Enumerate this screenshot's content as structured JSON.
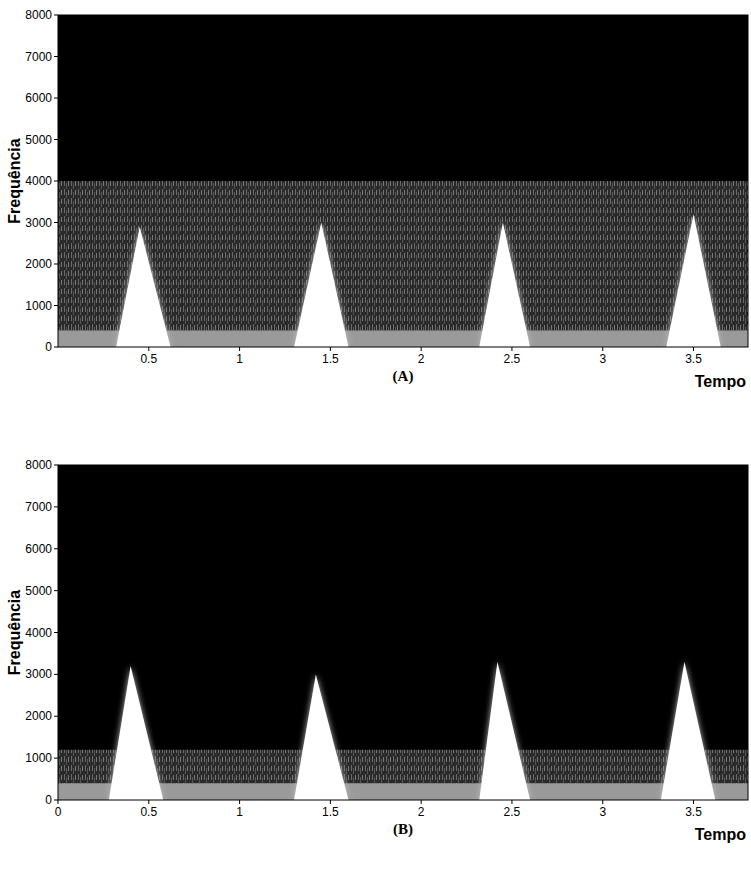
{
  "chart_data": [
    {
      "type": "spectrogram",
      "label": "(A)",
      "x_label": "Tempo",
      "y_label": "Frequência",
      "xlim": [
        0,
        3.8
      ],
      "ylim": [
        0,
        8000
      ],
      "xticks": [
        0.5,
        1,
        1.5,
        2,
        2.5,
        3,
        3.5
      ],
      "yticks": [
        0,
        1000,
        2000,
        3000,
        4000,
        5000,
        6000,
        7000,
        8000
      ],
      "noise_band": [
        0,
        4000
      ],
      "low_band": [
        0,
        400
      ],
      "bursts": [
        {
          "start": 0.32,
          "peak": 0.45,
          "end": 0.62,
          "f_peak": 2900
        },
        {
          "start": 1.3,
          "peak": 1.45,
          "end": 1.6,
          "f_peak": 3000
        },
        {
          "start": 2.32,
          "peak": 2.45,
          "end": 2.6,
          "f_peak": 3000
        },
        {
          "start": 3.35,
          "peak": 3.5,
          "end": 3.65,
          "f_peak": 3200
        }
      ]
    },
    {
      "type": "spectrogram",
      "label": "(B)",
      "x_label": "Tempo",
      "y_label": "Frequência",
      "xlim": [
        0,
        3.8
      ],
      "ylim": [
        0,
        8000
      ],
      "xticks": [
        0,
        0.5,
        1,
        1.5,
        2,
        2.5,
        3,
        3.5
      ],
      "yticks": [
        0,
        1000,
        2000,
        3000,
        4000,
        5000,
        6000,
        7000,
        8000
      ],
      "noise_band": [
        0,
        1200
      ],
      "low_band": [
        0,
        400
      ],
      "bursts": [
        {
          "start": 0.28,
          "peak": 0.4,
          "end": 0.58,
          "f_peak": 3200
        },
        {
          "start": 1.3,
          "peak": 1.42,
          "end": 1.6,
          "f_peak": 3000
        },
        {
          "start": 2.32,
          "peak": 2.42,
          "end": 2.6,
          "f_peak": 3300
        },
        {
          "start": 3.32,
          "peak": 3.45,
          "end": 3.62,
          "f_peak": 3300
        }
      ]
    }
  ]
}
